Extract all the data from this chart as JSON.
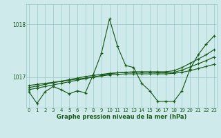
{
  "title": "Graphe pression niveau de la mer (hPa)",
  "bg_color": "#ceeaea",
  "grid_color": "#9dc8c8",
  "line_color": "#1a5c1a",
  "x_labels": [
    "0",
    "1",
    "2",
    "3",
    "4",
    "5",
    "6",
    "7",
    "8",
    "9",
    "10",
    "11",
    "12",
    "13",
    "14",
    "15",
    "16",
    "17",
    "18",
    "19",
    "20",
    "21",
    "22",
    "23"
  ],
  "yticks": [
    1017,
    1018
  ],
  "ylim": [
    1016.42,
    1018.38
  ],
  "xlim": [
    -0.3,
    23.3
  ],
  "series": {
    "main": [
      1016.72,
      1016.5,
      1016.72,
      1016.82,
      1016.76,
      1016.68,
      1016.74,
      1016.7,
      1017.05,
      1017.45,
      1018.1,
      1017.58,
      1017.22,
      1017.18,
      1016.88,
      1016.74,
      1016.54,
      1016.54,
      1016.54,
      1016.74,
      1017.15,
      1017.42,
      1017.62,
      1017.78
    ],
    "trend1": [
      1016.76,
      1016.79,
      1016.82,
      1016.85,
      1016.88,
      1016.91,
      1016.94,
      1016.97,
      1017.0,
      1017.03,
      1017.06,
      1017.08,
      1017.09,
      1017.1,
      1017.1,
      1017.1,
      1017.1,
      1017.1,
      1017.12,
      1017.18,
      1017.26,
      1017.34,
      1017.42,
      1017.52
    ],
    "trend2": [
      1016.84,
      1016.86,
      1016.88,
      1016.9,
      1016.92,
      1016.94,
      1016.96,
      1016.98,
      1017.0,
      1017.02,
      1017.04,
      1017.05,
      1017.06,
      1017.06,
      1017.06,
      1017.06,
      1017.06,
      1017.06,
      1017.07,
      1017.09,
      1017.12,
      1017.16,
      1017.2,
      1017.24
    ],
    "trend3": [
      1016.8,
      1016.83,
      1016.86,
      1016.89,
      1016.92,
      1016.95,
      1016.98,
      1017.01,
      1017.03,
      1017.05,
      1017.07,
      1017.08,
      1017.09,
      1017.09,
      1017.09,
      1017.09,
      1017.08,
      1017.08,
      1017.09,
      1017.13,
      1017.19,
      1017.25,
      1017.31,
      1017.38
    ]
  }
}
